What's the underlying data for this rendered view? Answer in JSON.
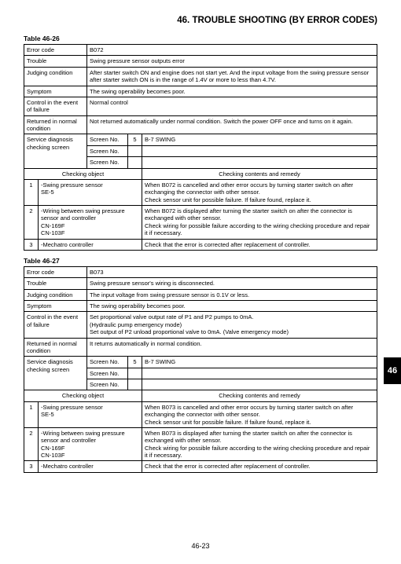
{
  "section_title": "46.  TROUBLE SHOOTING (BY ERROR CODES)",
  "side_tab": "46",
  "page_number": "46-23",
  "table1": {
    "label": "Table 46-26",
    "error_code_label": "Error code",
    "error_code": "B072",
    "trouble_label": "Trouble",
    "trouble": "Swing pressure sensor outputs error",
    "judging_label": "Judging condition",
    "judging": "After starter switch ON and engine does not start yet. And the input voltage from the swing pressure sensor after starter switch ON is in the range of 1.4V or more to less than 4.7V.",
    "symptom_label": "Symptom",
    "symptom": "The swing operability becomes poor.",
    "control_label": "Control in the event of failure",
    "control": "Normal control",
    "returned_label": "Returned in normal condition",
    "returned": "Not returned automatically under normal condition. Switch the power OFF once and turns on it again.",
    "service_label": "Service diagnosis checking screen",
    "screen_no_label": "Screen No.",
    "screen_val": "5",
    "screen_name": "B-7 SWING",
    "check_obj_header": "Checking object",
    "check_rem_header": "Checking contents and remedy",
    "rows": [
      {
        "n": "1",
        "obj": "-Swing pressure sensor\nSE-5",
        "rem": "When B072 is cancelled and other error occurs by turning starter switch on after exchanging the connector with other sensor.\nCheck sensor unit for possible failure. If failure found, replace it."
      },
      {
        "n": "2",
        "obj": "-Wiring between swing pressure sensor and controller\nCN-169F\nCN-103F",
        "rem": "When B072 is displayed after turning the starter switch on after the connector is exchanged with other sensor.\nCheck wiring for possible failure according to the wiring checking procedure and repair it if necessary."
      },
      {
        "n": "3",
        "obj": "-Mechatro controller",
        "rem": "Check that the error is corrected after replacement of controller."
      }
    ]
  },
  "table2": {
    "label": "Table 46-27",
    "error_code_label": "Error code",
    "error_code": "B073",
    "trouble_label": "Trouble",
    "trouble": "Swing pressure sensor's wiring is disconnected.",
    "judging_label": "Judging condition",
    "judging": "The input voltage from swing pressure sensor is 0.1V or less.",
    "symptom_label": "Symptom",
    "symptom": "The swing operability becomes poor.",
    "control_label": "Control in the event of failure",
    "control": "Set proportional valve output rate of P1 and P2 pumps to 0mA.\n(Hydraulic pump emergency mode)\nSet output of P2 unload proportional valve to 0mA. (Valve emergency mode)",
    "returned_label": "Returned in normal condition",
    "returned": "It returns automatically in normal condition.",
    "service_label": "Service diagnosis checking screen",
    "screen_no_label": "Screen No.",
    "screen_val": "5",
    "screen_name": "B-7 SWING",
    "check_obj_header": "Checking object",
    "check_rem_header": "Checking contents and remedy",
    "rows": [
      {
        "n": "1",
        "obj": "-Swing pressure sensor\nSE-5",
        "rem": "When B073 is cancelled and other error occurs by turning starter switch on after exchanging the connector with other sensor.\nCheck sensor unit for possible failure. If failure found, replace it."
      },
      {
        "n": "2",
        "obj": "-Wiring between swing pressure sensor and controller\nCN-169F\nCN-103F",
        "rem": "When B073 is displayed after turning the starter switch on after the connector is exchanged with other sensor.\nCheck wiring for possible failure according to the wiring checking procedure and repair it if necessary."
      },
      {
        "n": "3",
        "obj": "-Mechatro controller",
        "rem": "Check that the error is corrected after replacement of controller."
      }
    ]
  }
}
